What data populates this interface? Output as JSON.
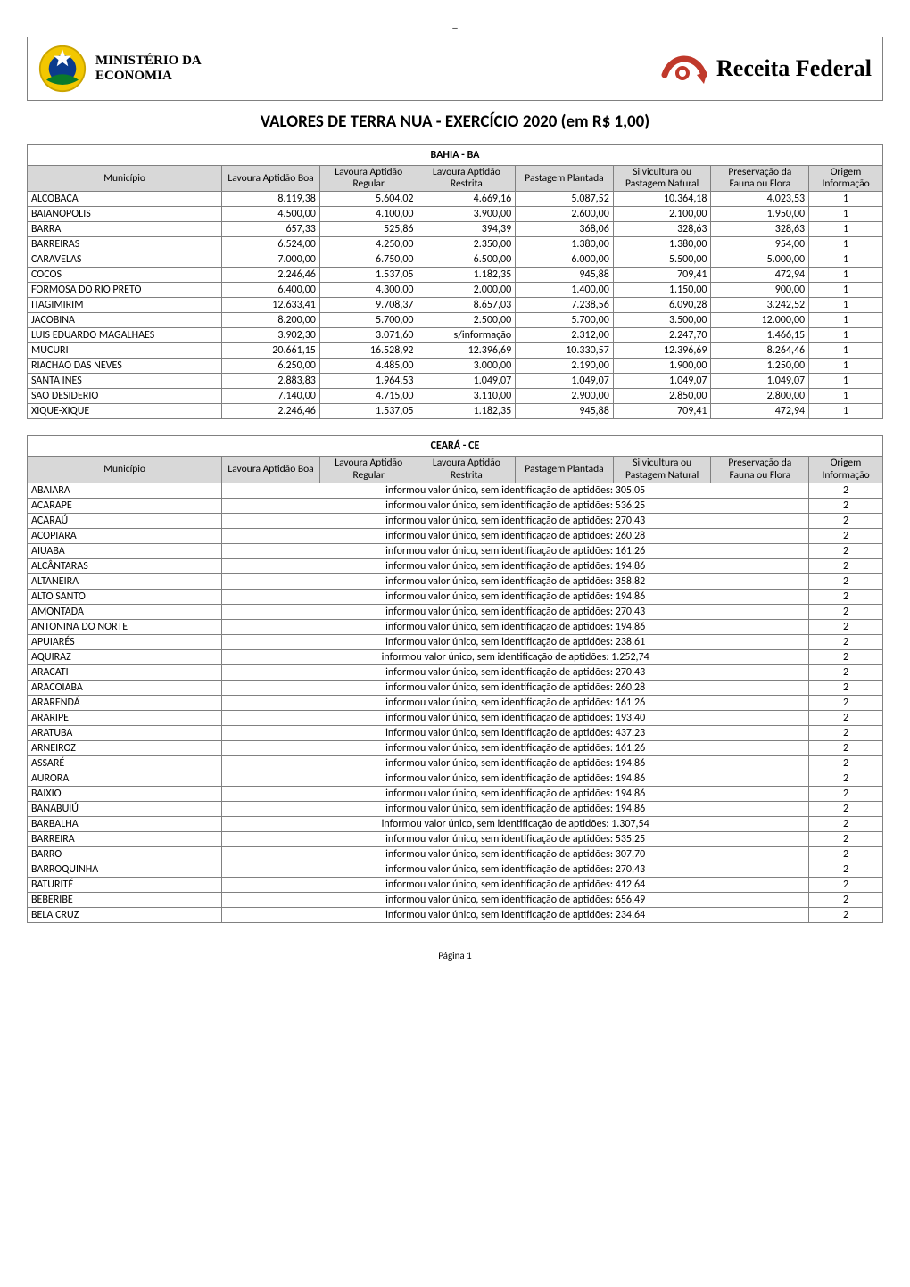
{
  "page_dash": "_",
  "header": {
    "ministry_line1": "MINISTÉRIO DA",
    "ministry_line2": "ECONOMIA",
    "receita": "Receita Federal"
  },
  "title": "VALORES DE TERRA NUA - EXERCÍCIO 2020 (em R$ 1,00)",
  "columns": {
    "municipio": "Município",
    "lavoura_boa": "Lavoura Aptidão Boa",
    "lavoura_regular": "Lavoura Aptidão Regular",
    "lavoura_restrita": "Lavoura Aptidão Restrita",
    "pastagem": "Pastagem Plantada",
    "silvicultura": "Silvicultura ou Pastagem Natural",
    "preservacao": "Preservação da Fauna ou Flora",
    "origem": "Origem Informação"
  },
  "bahia": {
    "title": "BAHIA - BA",
    "rows": [
      {
        "mun": "ALCOBACA",
        "v": [
          "8.119,38",
          "5.604,02",
          "4.669,16",
          "5.087,52",
          "10.364,18",
          "4.023,53"
        ],
        "o": "1"
      },
      {
        "mun": "BAIANOPOLIS",
        "v": [
          "4.500,00",
          "4.100,00",
          "3.900,00",
          "2.600,00",
          "2.100,00",
          "1.950,00"
        ],
        "o": "1"
      },
      {
        "mun": "BARRA",
        "v": [
          "657,33",
          "525,86",
          "394,39",
          "368,06",
          "328,63",
          "328,63"
        ],
        "o": "1"
      },
      {
        "mun": "BARREIRAS",
        "v": [
          "6.524,00",
          "4.250,00",
          "2.350,00",
          "1.380,00",
          "1.380,00",
          "954,00"
        ],
        "o": "1"
      },
      {
        "mun": "CARAVELAS",
        "v": [
          "7.000,00",
          "6.750,00",
          "6.500,00",
          "6.000,00",
          "5.500,00",
          "5.000,00"
        ],
        "o": "1"
      },
      {
        "mun": "COCOS",
        "v": [
          "2.246,46",
          "1.537,05",
          "1.182,35",
          "945,88",
          "709,41",
          "472,94"
        ],
        "o": "1"
      },
      {
        "mun": "FORMOSA DO RIO PRETO",
        "v": [
          "6.400,00",
          "4.300,00",
          "2.000,00",
          "1.400,00",
          "1.150,00",
          "900,00"
        ],
        "o": "1"
      },
      {
        "mun": "ITAGIMIRIM",
        "v": [
          "12.633,41",
          "9.708,37",
          "8.657,03",
          "7.238,56",
          "6.090,28",
          "3.242,52"
        ],
        "o": "1"
      },
      {
        "mun": "JACOBINA",
        "v": [
          "8.200,00",
          "5.700,00",
          "2.500,00",
          "5.700,00",
          "3.500,00",
          "12.000,00"
        ],
        "o": "1"
      },
      {
        "mun": "LUIS EDUARDO MAGALHAES",
        "v": [
          "3.902,30",
          "3.071,60",
          "s/informação",
          "2.312,00",
          "2.247,70",
          "1.466,15"
        ],
        "o": "1"
      },
      {
        "mun": "MUCURI",
        "v": [
          "20.661,15",
          "16.528,92",
          "12.396,69",
          "10.330,57",
          "12.396,69",
          "8.264,46"
        ],
        "o": "1"
      },
      {
        "mun": "RIACHAO DAS NEVES",
        "v": [
          "6.250,00",
          "4.485,00",
          "3.000,00",
          "2.190,00",
          "1.900,00",
          "1.250,00"
        ],
        "o": "1"
      },
      {
        "mun": "SANTA INES",
        "v": [
          "2.883,83",
          "1.964,53",
          "1.049,07",
          "1.049,07",
          "1.049,07",
          "1.049,07"
        ],
        "o": "1"
      },
      {
        "mun": "SAO DESIDERIO",
        "v": [
          "7.140,00",
          "4.715,00",
          "3.110,00",
          "2.900,00",
          "2.850,00",
          "2.800,00"
        ],
        "o": "1"
      },
      {
        "mun": "XIQUE-XIQUE",
        "v": [
          "2.246,46",
          "1.537,05",
          "1.182,35",
          "945,88",
          "709,41",
          "472,94"
        ],
        "o": "1"
      }
    ]
  },
  "ceara": {
    "title": "CEARÁ - CE",
    "merged_prefix": "informou valor único, sem identificação de aptidões: ",
    "rows": [
      {
        "mun": "ABAIARA",
        "val": "305,05",
        "o": "2"
      },
      {
        "mun": "ACARAPE",
        "val": "536,25",
        "o": "2"
      },
      {
        "mun": "ACARAÚ",
        "val": "270,43",
        "o": "2"
      },
      {
        "mun": "ACOPIARA",
        "val": "260,28",
        "o": "2"
      },
      {
        "mun": "AIUABA",
        "val": "161,26",
        "o": "2"
      },
      {
        "mun": "ALCÂNTARAS",
        "val": "194,86",
        "o": "2"
      },
      {
        "mun": "ALTANEIRA",
        "val": "358,82",
        "o": "2"
      },
      {
        "mun": "ALTO SANTO",
        "val": "194,86",
        "o": "2"
      },
      {
        "mun": "AMONTADA",
        "val": "270,43",
        "o": "2"
      },
      {
        "mun": "ANTONINA DO NORTE",
        "val": "194,86",
        "o": "2"
      },
      {
        "mun": "APUIARÉS",
        "val": "238,61",
        "o": "2"
      },
      {
        "mun": "AQUIRAZ",
        "val": "1.252,74",
        "o": "2"
      },
      {
        "mun": "ARACATI",
        "val": "270,43",
        "o": "2"
      },
      {
        "mun": "ARACOIABA",
        "val": "260,28",
        "o": "2"
      },
      {
        "mun": "ARARENDÁ",
        "val": "161,26",
        "o": "2"
      },
      {
        "mun": "ARARIPE",
        "val": "193,40",
        "o": "2"
      },
      {
        "mun": "ARATUBA",
        "val": "437,23",
        "o": "2"
      },
      {
        "mun": "ARNEIROZ",
        "val": "161,26",
        "o": "2"
      },
      {
        "mun": "ASSARÉ",
        "val": "194,86",
        "o": "2"
      },
      {
        "mun": "AURORA",
        "val": "194,86",
        "o": "2"
      },
      {
        "mun": "BAIXIO",
        "val": "194,86",
        "o": "2"
      },
      {
        "mun": "BANABUIÚ",
        "val": "194,86",
        "o": "2"
      },
      {
        "mun": "BARBALHA",
        "val": "1.307,54",
        "o": "2"
      },
      {
        "mun": "BARREIRA",
        "val": "535,25",
        "o": "2"
      },
      {
        "mun": "BARRO",
        "val": "307,70",
        "o": "2"
      },
      {
        "mun": "BARROQUINHA",
        "val": "270,43",
        "o": "2"
      },
      {
        "mun": "BATURITÉ",
        "val": "412,64",
        "o": "2"
      },
      {
        "mun": "BEBERIBE",
        "val": "656,49",
        "o": "2"
      },
      {
        "mun": "BELA CRUZ",
        "val": "234,64",
        "o": "2"
      }
    ]
  },
  "footer": "Página 1",
  "styling": {
    "header_bg": "#d8d8d8",
    "border_color": "#808080",
    "font_base": 12,
    "title_fontsize": 19,
    "receita_fontsize": 26,
    "seal_colors": {
      "outer": "#f2c700",
      "inner": "#0b3b8c",
      "leaf": "#0a7a2a"
    },
    "receita_logo_stroke": "#c0392b"
  }
}
